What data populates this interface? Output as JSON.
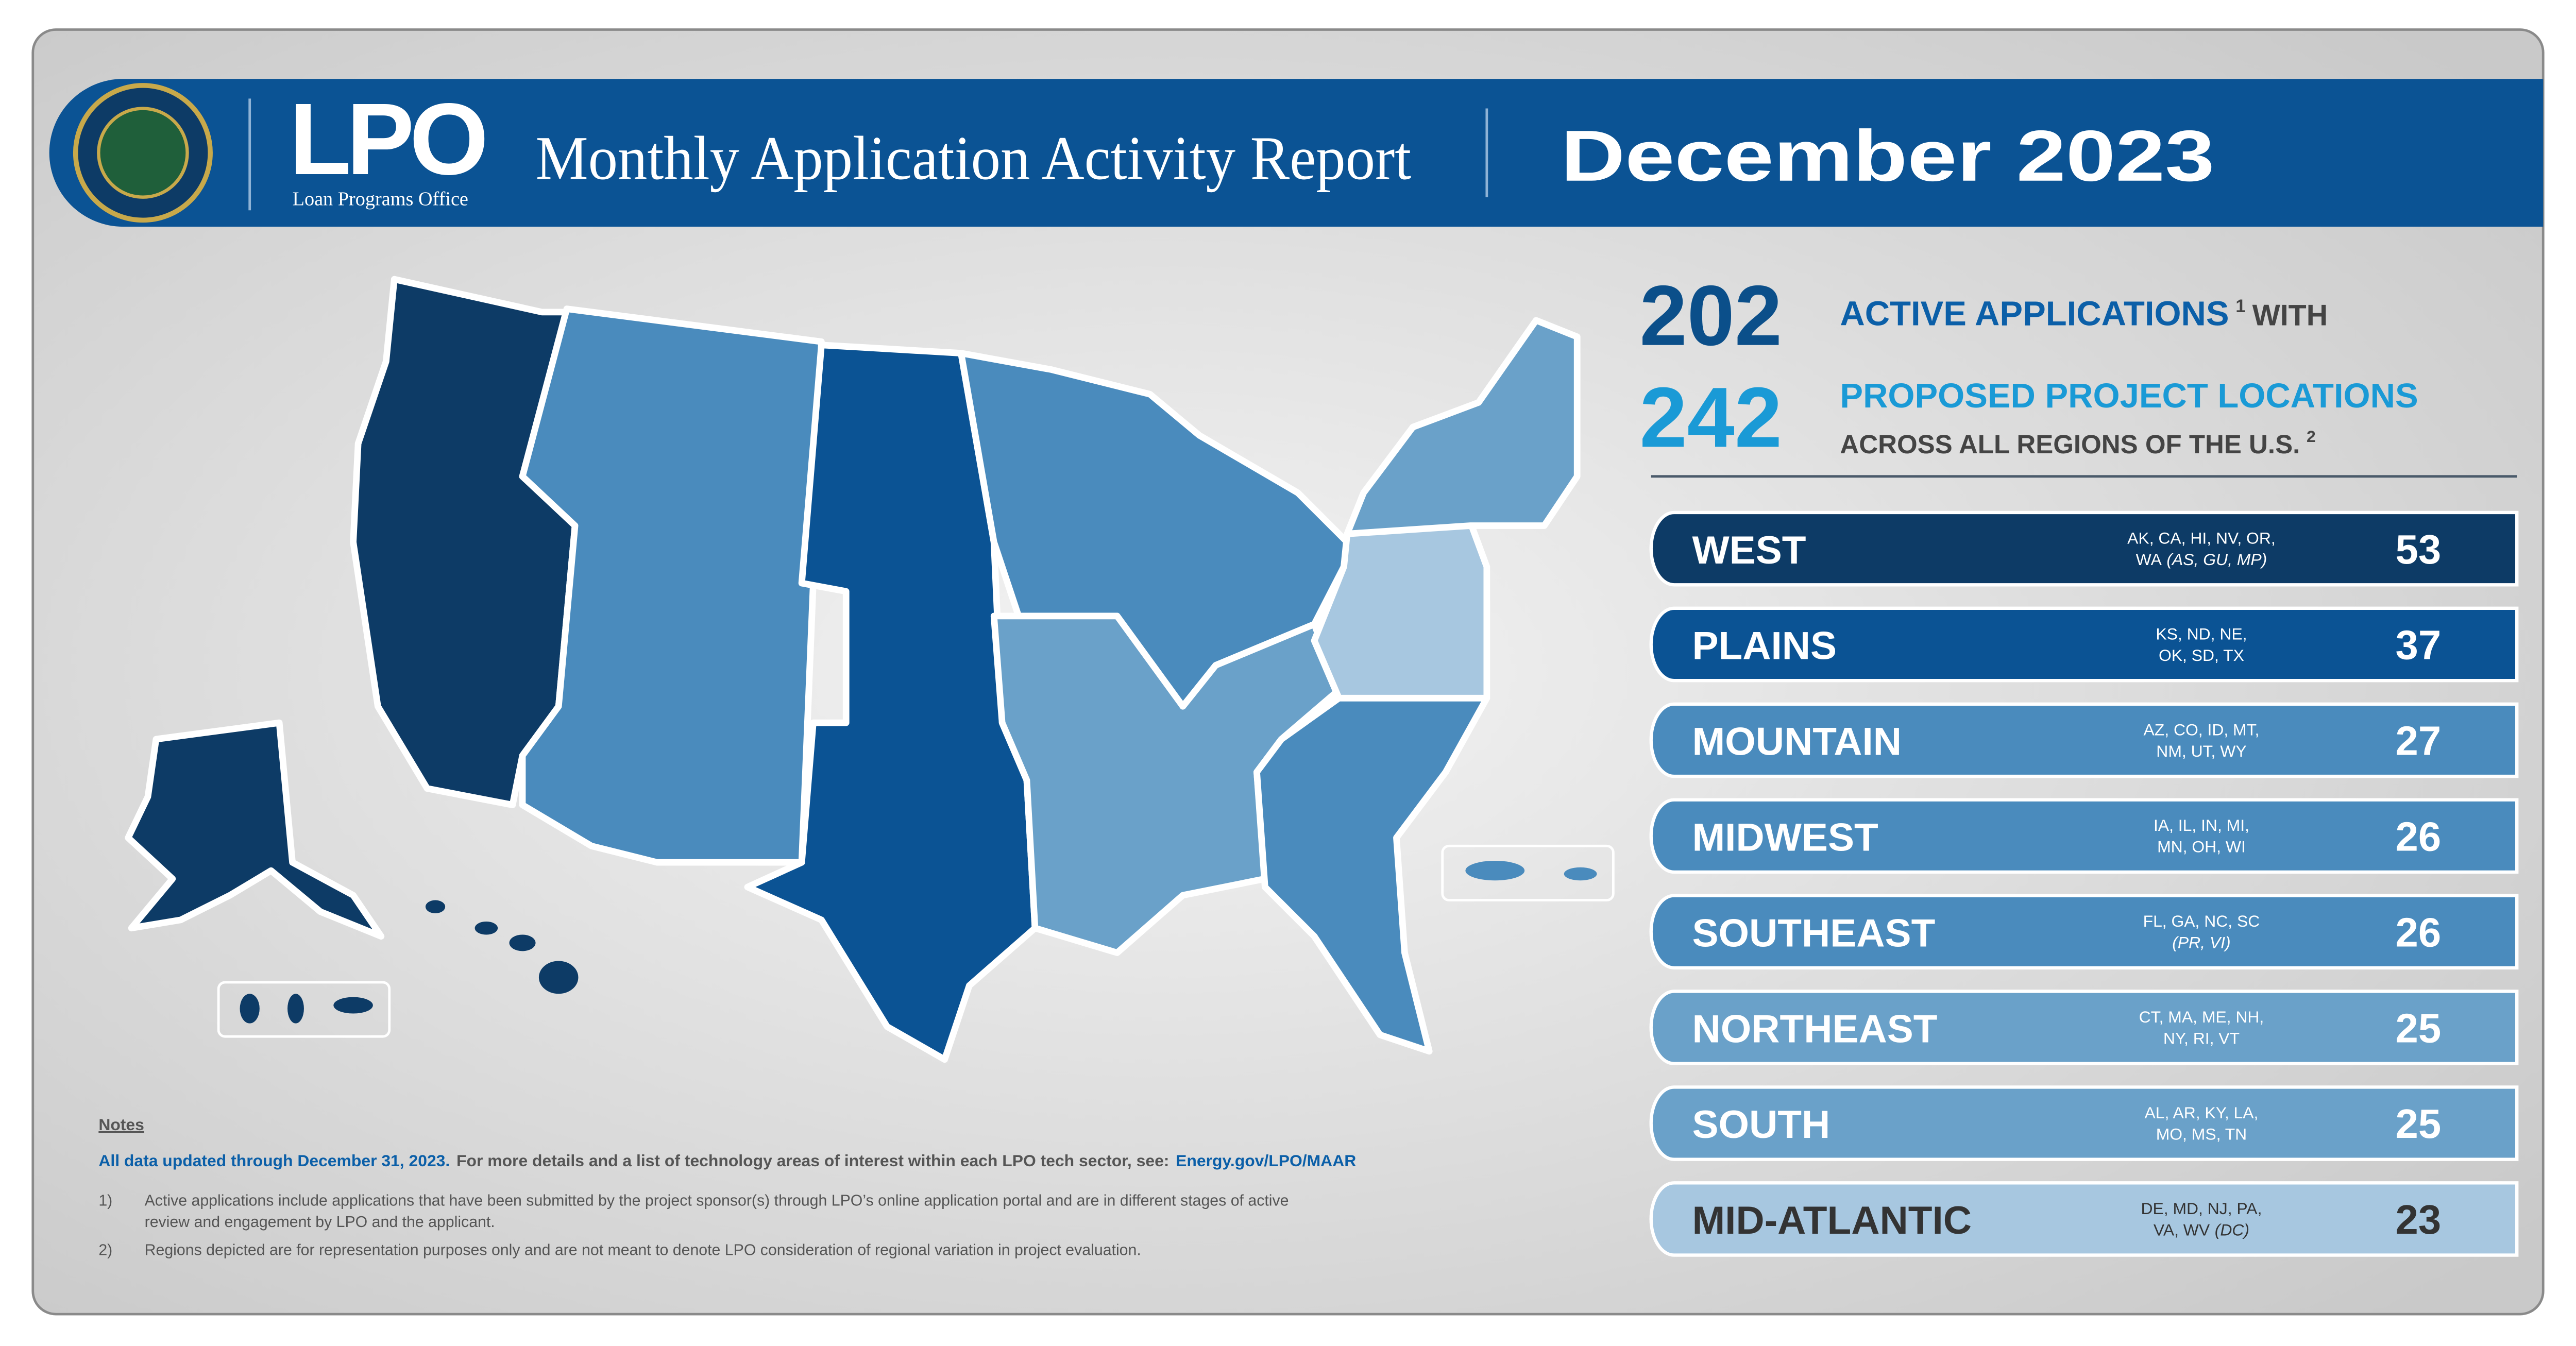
{
  "header": {
    "logo": "LPO",
    "logo_subtitle": "Loan Programs Office",
    "title": "Monthly Application Activity Report",
    "period": "December 2023"
  },
  "stats": {
    "active_count": 202,
    "active_label": "ACTIVE APPLICATIONS",
    "active_note": "1",
    "active_suffix": "WITH",
    "locations_count": 242,
    "locations_label": "PROPOSED PROJECT LOCATIONS",
    "locations_suffix": "ACROSS ALL REGIONS OF THE U.S.",
    "locations_note": "2"
  },
  "regions": [
    {
      "name": "WEST",
      "states": [
        "AK, CA, HI, NV, OR,",
        "WA"
      ],
      "territories": "(AS, GU, MP)",
      "count": 53
    },
    {
      "name": "PLAINS",
      "states": [
        "KS, ND, NE,",
        "OK, SD, TX"
      ],
      "count": 37
    },
    {
      "name": "MOUNTAIN",
      "states": [
        "AZ, CO, ID, MT,",
        "NM, UT, WY"
      ],
      "count": 27
    },
    {
      "name": "MIDWEST",
      "states": [
        "IA, IL, IN, MI,",
        "MN, OH, WI"
      ],
      "count": 26
    },
    {
      "name": "SOUTHEAST",
      "states": [
        "FL, GA, NC, SC"
      ],
      "territories": "(PR, VI)",
      "count": 26
    },
    {
      "name": "NORTHEAST",
      "states": [
        "CT, MA, ME, NH,",
        "NY, RI, VT"
      ],
      "count": 25
    },
    {
      "name": "SOUTH",
      "states": [
        "AL, AR, KY, LA,",
        "MO, MS, TN"
      ],
      "count": 25
    },
    {
      "name": "MID-ATLANTIC",
      "states": [
        "DE, MD, NJ, PA,",
        "VA, WV"
      ],
      "territories": "(DC)",
      "count": 23
    }
  ],
  "notes": {
    "heading": "Notes",
    "updated": "All data updated through December 31, 2023.",
    "details": "For more details and a list of technology areas of interest within each LPO tech sector, see:",
    "link": "Energy.gov/LPO/MAAR",
    "footnotes": [
      {
        "marker": "1)",
        "lines": [
          "Active applications include applications that have been submitted by the project sponsor(s) through LPO’s online application portal and are in different stages of active",
          "review and engagement by LPO and the applicant."
        ]
      },
      {
        "marker": "2)",
        "lines": [
          "Regions depicted are for representation purposes only and are not meant to denote LPO consideration of regional variation in project evaluation."
        ]
      }
    ]
  }
}
